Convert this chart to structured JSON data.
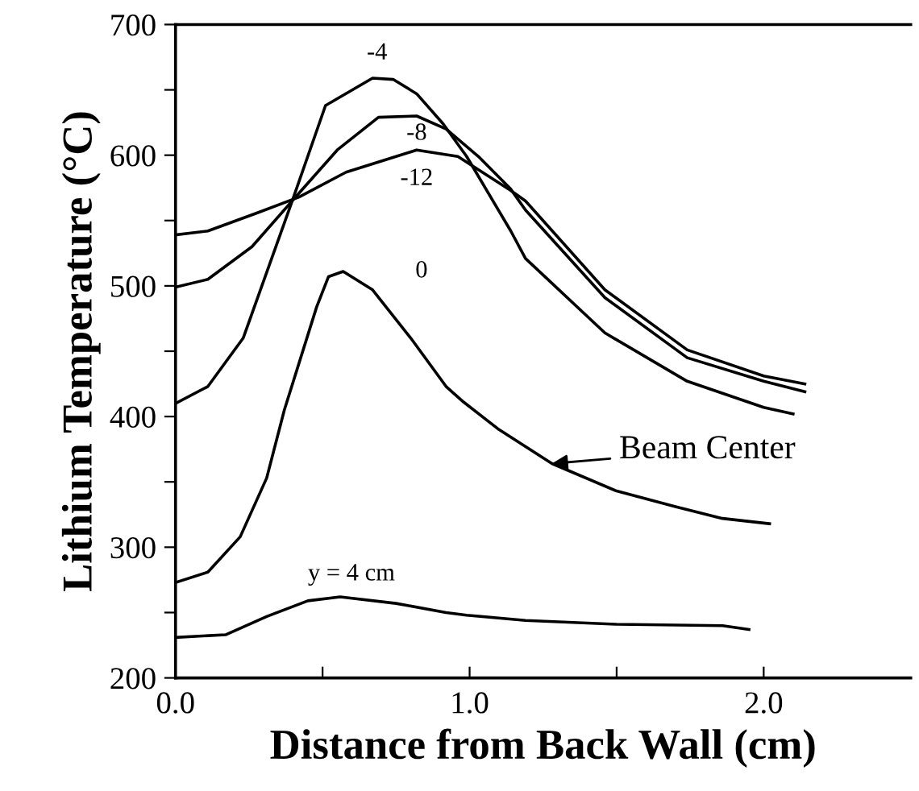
{
  "chart_data": {
    "type": "line",
    "xlabel": "Distance from Back Wall (cm)",
    "ylabel": "Lithium Temperature (°C)",
    "xlim": [
      0,
      2.5
    ],
    "xticks": [
      {
        "value": 0,
        "label": "0.0"
      },
      {
        "value": 0.5,
        "label": null
      },
      {
        "value": 1,
        "label": "1.0"
      },
      {
        "value": 1.5,
        "label": null
      },
      {
        "value": 2,
        "label": "2.0"
      }
    ],
    "ylim": [
      200,
      700
    ],
    "yticks": [
      200,
      {
        "value": 250,
        "label": null
      },
      300,
      {
        "value": 350,
        "label": null
      },
      400,
      {
        "value": 450,
        "label": null
      },
      500,
      {
        "value": 550,
        "label": null
      },
      600,
      {
        "value": 650,
        "label": null
      },
      700
    ],
    "grid": false,
    "legend": false,
    "marker": "none",
    "line_style": "solid",
    "series": [
      {
        "name": "-4",
        "color": "#000000",
        "x": [
          0,
          0.11,
          0.23,
          0.4,
          0.51,
          0.67,
          0.74,
          0.82,
          0.91,
          0.99,
          1.14,
          1.19,
          1.46,
          1.74,
          2.0,
          2.1
        ],
        "values": [
          410,
          423,
          460,
          567,
          638,
          659,
          658,
          647,
          624,
          599,
          542,
          521,
          464,
          427,
          407,
          402
        ]
      },
      {
        "name": "-8",
        "color": "#000000",
        "x": [
          0,
          0.11,
          0.26,
          0.42,
          0.55,
          0.69,
          0.82,
          0.92,
          1.03,
          1.14,
          1.19,
          1.46,
          1.74,
          2.0,
          2.14
        ],
        "values": [
          499,
          505,
          530,
          571,
          604,
          629,
          630,
          620,
          599,
          574,
          558,
          491,
          445,
          427,
          419
        ]
      },
      {
        "name": "-12",
        "color": "#000000",
        "x": [
          0,
          0.11,
          0.28,
          0.42,
          0.58,
          0.75,
          0.82,
          0.96,
          1.14,
          1.19,
          1.46,
          1.74,
          2.0,
          2.14
        ],
        "values": [
          539,
          542,
          556,
          568,
          587,
          599,
          604,
          599,
          573,
          565,
          497,
          451,
          431,
          425
        ]
      },
      {
        "name": "0",
        "color": "#000000",
        "x": [
          0,
          0.11,
          0.22,
          0.31,
          0.37,
          0.48,
          0.52,
          0.57,
          0.67,
          0.8,
          0.92,
          0.98,
          1.1,
          1.28,
          1.5,
          1.7,
          1.86,
          2.02
        ],
        "values": [
          273,
          281,
          308,
          353,
          405,
          484,
          507,
          511,
          497,
          460,
          423,
          411,
          390,
          364,
          343,
          331,
          322,
          318
        ]
      },
      {
        "name": "y = 4 cm",
        "color": "#000000",
        "x": [
          0,
          0.17,
          0.31,
          0.45,
          0.56,
          0.75,
          0.92,
          0.99,
          1.19,
          1.5,
          1.86,
          1.95
        ],
        "values": [
          231,
          233,
          247,
          259,
          262,
          257,
          250,
          248,
          244,
          241,
          240,
          237
        ]
      }
    ],
    "annotations": [
      {
        "text": "Beam Center",
        "x": 1.28,
        "y": 364
      }
    ]
  }
}
